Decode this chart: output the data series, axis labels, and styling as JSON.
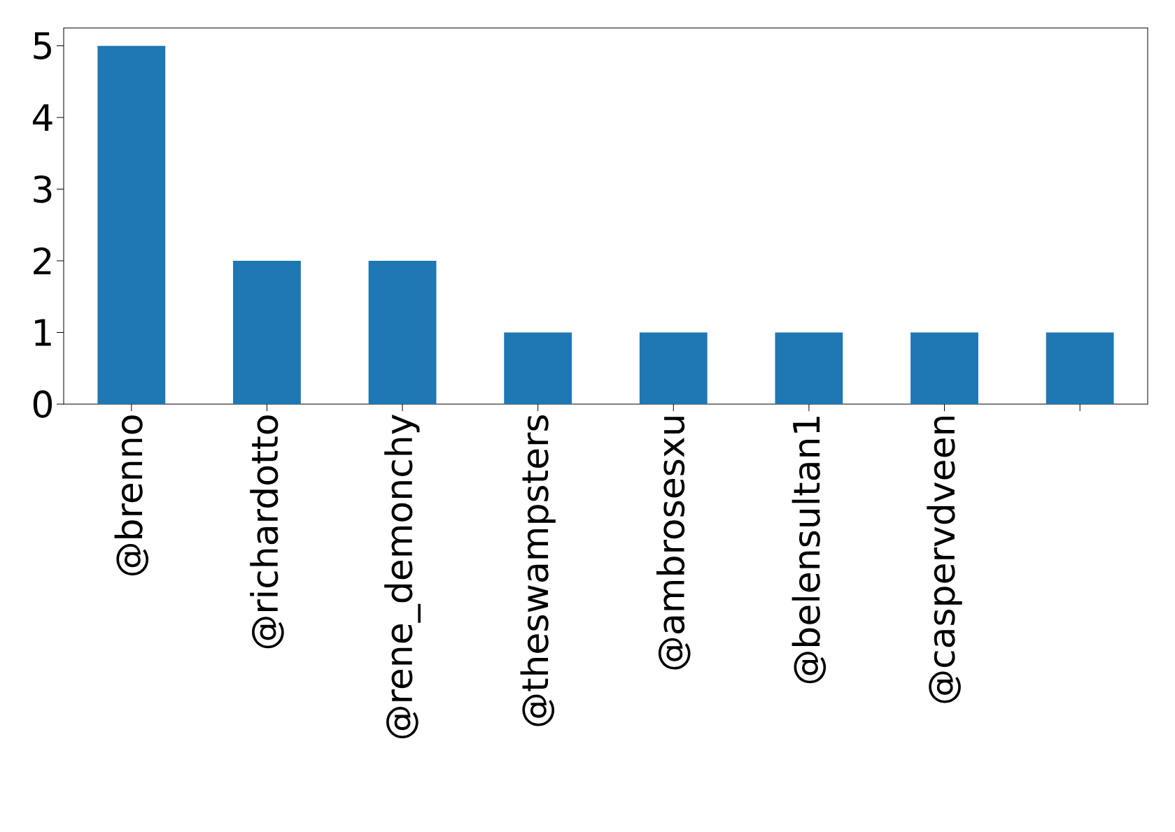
{
  "chart_data": {
    "type": "bar",
    "categories": [
      "@brenno",
      "@richardotto",
      "@rene_demonchy",
      "@theswampsters",
      "@ambrosesxu",
      "@belensultan1",
      "@caspervdveen",
      null
    ],
    "values": [
      5,
      2,
      2,
      1,
      1,
      1,
      1,
      1
    ],
    "color": "#1f77b4",
    "ylim": [
      0,
      5.25
    ],
    "yticks": [
      0,
      1,
      2,
      3,
      4,
      5
    ]
  }
}
